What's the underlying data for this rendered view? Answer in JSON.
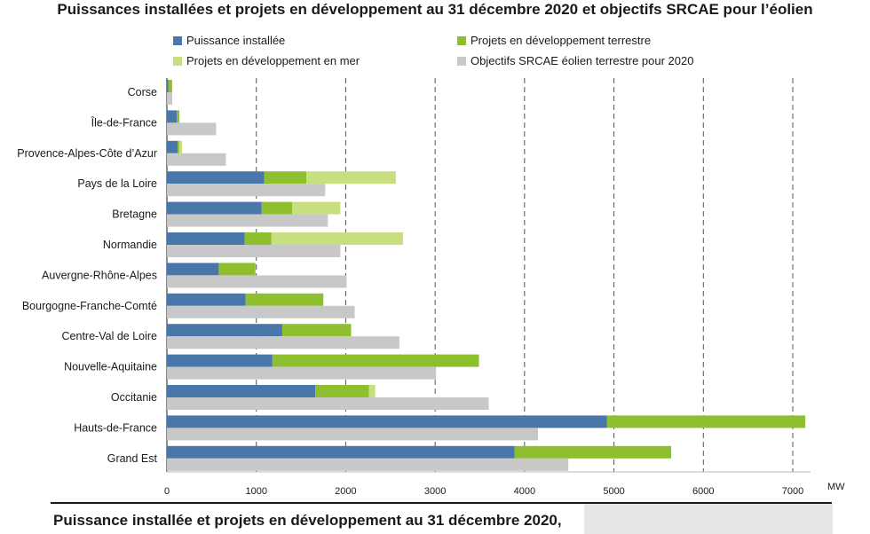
{
  "chart_data": {
    "type": "bar",
    "orientation": "horizontal",
    "title": "Puissances installées et projets en développement au 31 décembre 2020 et objectifs SRCAE pour l’éolien",
    "xlabel": "MW",
    "xlim": [
      0,
      7000
    ],
    "xticks": [
      "0",
      "1000",
      "2000",
      "3000",
      "4000",
      "5000",
      "6000",
      "7000"
    ],
    "grid": "vertical dashed",
    "legend_position": "top",
    "categories": [
      "Corse",
      "Île-de-France",
      "Provence-Alpes-Côte d’Azur",
      "Pays de la Loire",
      "Bretagne",
      "Normandie",
      "Auvergne-Rhône-Alpes",
      "Bourgogne-Franche-Comté",
      "Centre-Val de Loire",
      "Nouvelle-Aquitaine",
      "Occitanie",
      "Hauts-de-France",
      "Grand Est"
    ],
    "series": [
      {
        "name": "Puissance installée",
        "color": "#4a77a9",
        "stack": "actual",
        "values": [
          18,
          110,
          120,
          1090,
          1060,
          870,
          580,
          880,
          1290,
          1180,
          1660,
          4920,
          3890
        ]
      },
      {
        "name": "Projets en développement terrestre",
        "color": "#8dbf2e",
        "stack": "actual",
        "values": [
          40,
          30,
          20,
          470,
          340,
          300,
          410,
          870,
          770,
          2310,
          600,
          2220,
          1750
        ]
      },
      {
        "name": "Projets en développement en mer",
        "color": "#c7df7f",
        "stack": "actual",
        "values": [
          0,
          0,
          30,
          1000,
          540,
          1470,
          0,
          0,
          0,
          0,
          70,
          0,
          0
        ]
      },
      {
        "name": "Objectifs SRCAE éolien terrestre pour 2020",
        "color": "#c8c8c8",
        "stack": "objective",
        "values": [
          60,
          550,
          660,
          1770,
          1800,
          1940,
          2010,
          2100,
          2600,
          3010,
          3600,
          4150,
          4490
        ]
      }
    ]
  },
  "footer": {
    "title": "Puissance installée et projets en développement au 31 décembre 2020,"
  }
}
